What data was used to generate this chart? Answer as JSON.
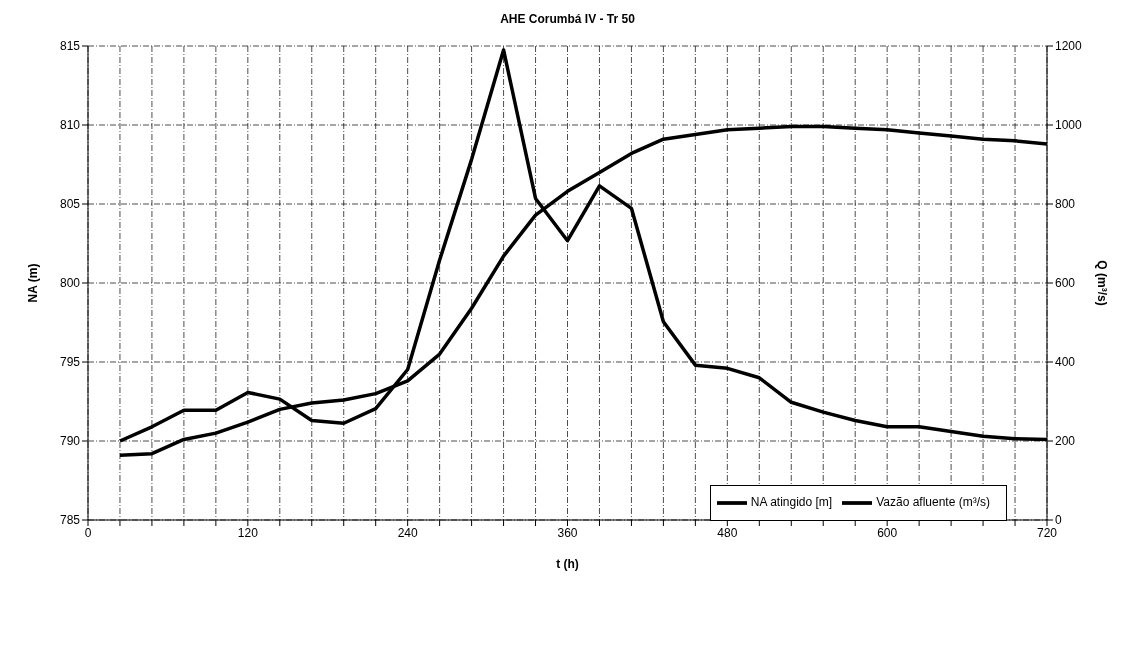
{
  "chart_data": {
    "type": "line",
    "title": "AHE Corumbá IV - Tr 50",
    "xlabel": "t (h)",
    "ylabel": "NA (m)",
    "y2label": "Q (m³/s)",
    "x": [
      24,
      48,
      72,
      96,
      120,
      144,
      168,
      192,
      216,
      240,
      264,
      288,
      312,
      336,
      360,
      384,
      408,
      432,
      456,
      480,
      504,
      528,
      552,
      576,
      600,
      624,
      648,
      672,
      696,
      720
    ],
    "series": [
      {
        "name": "NA atingido [m]",
        "color": "#000000",
        "values": [
          789.1,
          789.2,
          790.1,
          790.5,
          791.2,
          792.0,
          792.4,
          792.6,
          793.0,
          793.8,
          795.5,
          798.4,
          801.7,
          804.3,
          805.8,
          807.0,
          808.2,
          809.1,
          809.4,
          809.7,
          809.8,
          809.9,
          809.9,
          809.8,
          809.7,
          809.5,
          809.3,
          809.1,
          809.0,
          808.8
        ]
      },
      {
        "name": "Vazão afluente (m³/s)",
        "color": "#000000",
        "axis": "y2",
        "values": [
          200,
          236,
          278,
          278,
          323,
          306,
          252,
          245,
          282,
          381,
          658,
          913,
          1190,
          814,
          707,
          846,
          789,
          502,
          392,
          384,
          360,
          298,
          273,
          252,
          236,
          236,
          224,
          212,
          206,
          204
        ]
      }
    ],
    "xlim": [
      0,
      720
    ],
    "xticks": [
      0,
      {
        "value": 24,
        "label": null
      },
      {
        "value": 48,
        "label": null
      },
      {
        "value": 72,
        "label": null
      },
      {
        "value": 96,
        "label": null
      },
      120,
      {
        "value": 144,
        "label": null
      },
      {
        "value": 168,
        "label": null
      },
      {
        "value": 192,
        "label": null
      },
      {
        "value": 216,
        "label": null
      },
      240,
      {
        "value": 264,
        "label": null
      },
      {
        "value": 288,
        "label": null
      },
      {
        "value": 312,
        "label": null
      },
      {
        "value": 336,
        "label": null
      },
      360,
      {
        "value": 384,
        "label": null
      },
      {
        "value": 408,
        "label": null
      },
      {
        "value": 432,
        "label": null
      },
      {
        "value": 456,
        "label": null
      },
      480,
      {
        "value": 504,
        "label": null
      },
      {
        "value": 528,
        "label": null
      },
      {
        "value": 552,
        "label": null
      },
      {
        "value": 576,
        "label": null
      },
      600,
      {
        "value": 624,
        "label": null
      },
      {
        "value": 648,
        "label": null
      },
      {
        "value": 672,
        "label": null
      },
      {
        "value": 696,
        "label": null
      },
      720
    ],
    "ylim": [
      785,
      815
    ],
    "yticks": [
      785,
      790,
      795,
      800,
      805,
      810,
      815
    ],
    "y2lim": [
      0,
      1200
    ],
    "y2ticks": [
      0,
      200,
      400,
      600,
      800,
      1000,
      1200
    ],
    "grid": true,
    "legend": "bottom right",
    "marker": "none",
    "line_style": "solid"
  }
}
